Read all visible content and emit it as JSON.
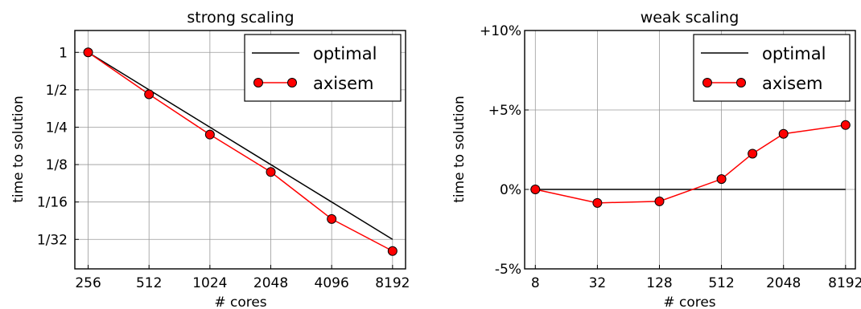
{
  "chart_data": [
    {
      "type": "line",
      "title": "strong scaling",
      "xlabel": "# cores",
      "ylabel": "time to solution",
      "x_scale": "log2",
      "y_scale": "log2",
      "categories": [
        "256",
        "512",
        "1024",
        "2048",
        "4096",
        "8192"
      ],
      "x": [
        256,
        512,
        1024,
        2048,
        4096,
        8192
      ],
      "y_tick_labels": [
        "1",
        "1/2",
        "1/4",
        "1/8",
        "1/16",
        "1/32"
      ],
      "y_ticks": [
        1,
        0.5,
        0.25,
        0.125,
        0.0625,
        0.03125
      ],
      "xlim": [
        220,
        9500
      ],
      "ylim": [
        0.0181,
        1.5
      ],
      "grid": true,
      "legend_position": "top-right",
      "series": [
        {
          "name": "optimal",
          "color": "#000000",
          "marker": "none",
          "values": [
            1,
            0.5,
            0.25,
            0.125,
            0.0625,
            0.03125
          ]
        },
        {
          "name": "axisem",
          "color": "#ff0000",
          "marker": "circle",
          "values": [
            1,
            0.46,
            0.218,
            0.109,
            0.0456,
            0.0252
          ]
        }
      ]
    },
    {
      "type": "line",
      "title": "weak scaling",
      "xlabel": "# cores",
      "ylabel": "time to solution",
      "x_scale": "log2",
      "categories": [
        "8",
        "32",
        "128",
        "512",
        "2048",
        "8192"
      ],
      "x_ticks": [
        8,
        32,
        128,
        512,
        2048,
        8192
      ],
      "y_tick_labels": [
        "-5%",
        "0%",
        "+5%",
        "+10%"
      ],
      "y_ticks": [
        -5,
        0,
        5,
        10
      ],
      "xlim": [
        6.3,
        10200
      ],
      "ylim": [
        -5,
        10
      ],
      "grid": true,
      "legend_position": "top-right",
      "series": [
        {
          "name": "optimal",
          "color": "#000000",
          "marker": "none",
          "x": [
            8,
            8192
          ],
          "values": [
            0,
            0
          ]
        },
        {
          "name": "axisem",
          "color": "#ff0000",
          "marker": "circle",
          "x": [
            8,
            32,
            128,
            512,
            1024,
            2048,
            8192
          ],
          "values": [
            0,
            -0.85,
            -0.75,
            0.65,
            2.25,
            3.5,
            4.05
          ]
        }
      ]
    }
  ]
}
